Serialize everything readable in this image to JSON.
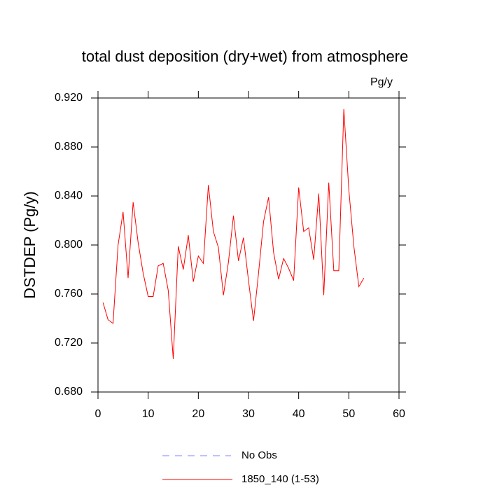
{
  "chart_data": {
    "type": "line",
    "title": "total dust deposition (dry+wet) from atmosphere",
    "units": "Pg/y",
    "y_label": "DSTDEP  (Pg/y)",
    "x": [
      1,
      2,
      3,
      4,
      5,
      6,
      7,
      8,
      9,
      10,
      11,
      12,
      13,
      14,
      15,
      16,
      17,
      18,
      19,
      20,
      21,
      22,
      23,
      24,
      25,
      26,
      27,
      28,
      29,
      30,
      31,
      32,
      33,
      34,
      35,
      36,
      37,
      38,
      39,
      40,
      41,
      42,
      43,
      44,
      45,
      46,
      47,
      48,
      49,
      50,
      51,
      52,
      53
    ],
    "series": [
      {
        "name": "1850_140 (1-53)",
        "color": "#ff0000",
        "values": [
          0.753,
          0.739,
          0.736,
          0.8,
          0.827,
          0.773,
          0.835,
          0.802,
          0.777,
          0.758,
          0.758,
          0.783,
          0.785,
          0.763,
          0.707,
          0.799,
          0.78,
          0.808,
          0.77,
          0.791,
          0.785,
          0.849,
          0.811,
          0.798,
          0.759,
          0.786,
          0.824,
          0.787,
          0.806,
          0.771,
          0.738,
          0.777,
          0.819,
          0.839,
          0.794,
          0.772,
          0.789,
          0.781,
          0.771,
          0.847,
          0.811,
          0.814,
          0.788,
          0.842,
          0.759,
          0.851,
          0.779,
          0.779,
          0.911,
          0.845,
          0.799,
          0.766,
          0.773
        ]
      }
    ],
    "extra_legend": [
      {
        "name": "No Obs",
        "color": "#8080ff",
        "style": "dashed"
      }
    ],
    "xlim": [
      0,
      60
    ],
    "xticks": [
      0,
      10,
      20,
      30,
      40,
      50,
      60
    ],
    "ylim": [
      0.68,
      0.92
    ],
    "yticks": [
      {
        "value": 0.68,
        "label": "0.680"
      },
      {
        "value": 0.72,
        "label": "0.720"
      },
      {
        "value": 0.76,
        "label": "0.760"
      },
      {
        "value": 0.8,
        "label": "0.800"
      },
      {
        "value": 0.84,
        "label": "0.840"
      },
      {
        "value": 0.88,
        "label": "0.880"
      },
      {
        "value": 0.92,
        "label": "0.920"
      }
    ]
  }
}
